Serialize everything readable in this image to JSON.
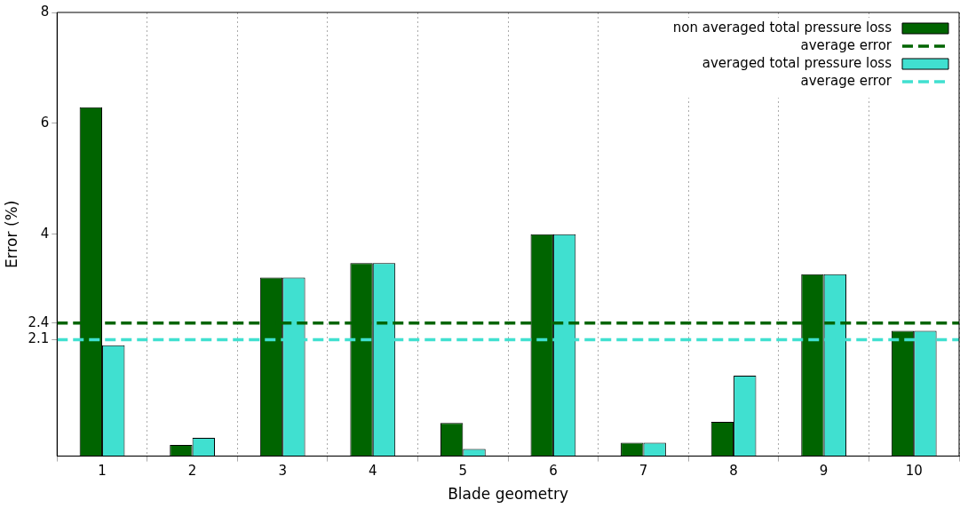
{
  "chart_data": {
    "type": "bar",
    "xlabel": "Blade geometry",
    "ylabel": "Error (%)",
    "categories": [
      "1",
      "2",
      "3",
      "4",
      "5",
      "6",
      "7",
      "8",
      "9",
      "10"
    ],
    "series": [
      {
        "name": "non averaged total pressure loss",
        "color": "#006400",
        "values": [
          6.29,
          0.2,
          3.22,
          3.48,
          0.6,
          4.0,
          0.24,
          0.62,
          3.28,
          2.26
        ]
      },
      {
        "name": "averaged total pressure loss",
        "color": "#40e0d0",
        "values": [
          2.0,
          0.33,
          3.22,
          3.48,
          0.13,
          4.0,
          0.24,
          1.45,
          3.28,
          2.26
        ]
      }
    ],
    "ref_lines": [
      {
        "axis": "y",
        "value": 2.4,
        "label": "average error",
        "color": "#006400",
        "line_style": "dashed"
      },
      {
        "axis": "y",
        "value": 2.1,
        "label": "average error",
        "color": "#40e0d0",
        "line_style": "dashed"
      }
    ],
    "ylim": [
      0,
      8
    ],
    "yticks": [
      2.1,
      2.4,
      4,
      6,
      8
    ],
    "grid": "x",
    "legend": "top right"
  }
}
